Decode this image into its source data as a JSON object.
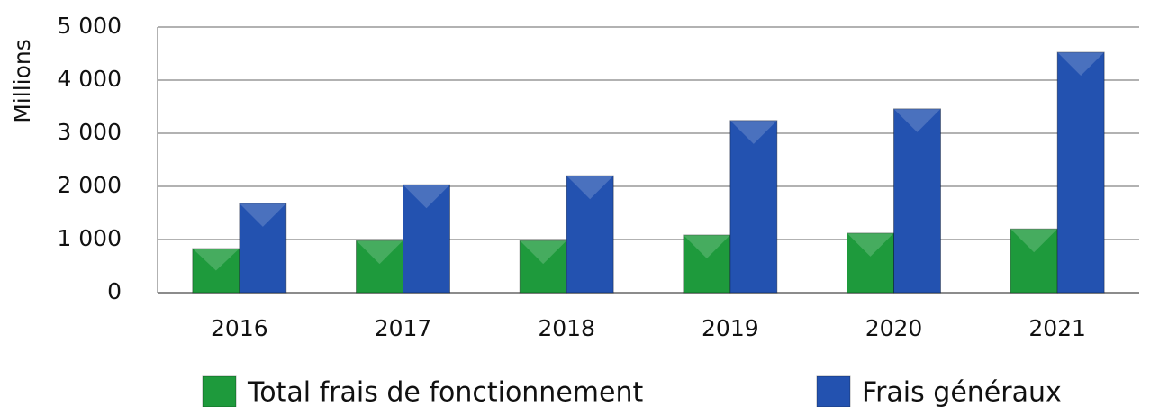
{
  "chart_data": {
    "type": "bar",
    "y_axis_label": "Millions",
    "categories": [
      "2016",
      "2017",
      "2018",
      "2019",
      "2020",
      "2021"
    ],
    "series": [
      {
        "name": "Total frais de fonctionnement",
        "color": "#1e9a3c",
        "values": [
          830,
          980,
          980,
          1085,
          1120,
          1200
        ]
      },
      {
        "name": "Frais généraux",
        "color": "#2352b0",
        "values": [
          1680,
          2030,
          2200,
          3240,
          3460,
          4525
        ]
      }
    ],
    "ylim": [
      0,
      5000
    ],
    "yticks": [
      0,
      {
        "value": 1000,
        "label": "1 000"
      },
      {
        "value": 2000,
        "label": "2 000"
      },
      {
        "value": 3000,
        "label": "3 000"
      },
      {
        "value": 4000,
        "label": "4 000"
      },
      {
        "value": 5000,
        "label": "5 000"
      }
    ],
    "grid": true
  }
}
